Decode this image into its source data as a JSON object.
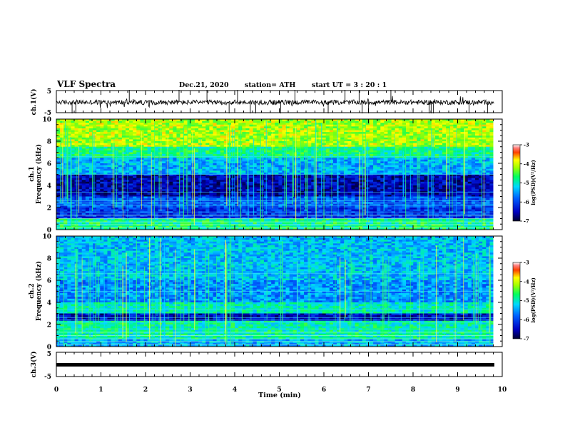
{
  "header": {
    "title": "VLF Spectra",
    "date": "Dec.21, 2020",
    "station": "station= ATH",
    "start": "start UT = 3 : 20 : 1"
  },
  "chart_data": [
    {
      "type": "line",
      "name": "ch1-waveform",
      "ylabel": "ch.1(V)",
      "ylim": [
        -5,
        5
      ],
      "yticks": [
        "5",
        "-5"
      ],
      "xlim": [
        0,
        10
      ],
      "baseline": 0
    },
    {
      "type": "heatmap",
      "name": "ch1-spectrogram",
      "ylabel": "ch.1\nFrequency (kHz)",
      "ylabel_line1": "ch.1",
      "ylabel_line2": "Frequency (kHz)",
      "ylim": [
        0,
        10
      ],
      "yticks": [
        "0",
        "2",
        "4",
        "6",
        "8",
        "10"
      ],
      "xlim": [
        0,
        9.8
      ],
      "colorbar": {
        "label": "log(PSD)(V²/Hz)",
        "range": [
          -7,
          -3
        ],
        "ticks": [
          "-3",
          "-4",
          "-5",
          "-6",
          "-7"
        ]
      }
    },
    {
      "type": "heatmap",
      "name": "ch2-spectrogram",
      "ylabel_line1": "ch.2",
      "ylabel_line2": "Frequency (kHz)",
      "ylim": [
        0,
        10
      ],
      "yticks": [
        "0",
        "2",
        "4",
        "6",
        "8",
        "10"
      ],
      "xlim": [
        0,
        9.8
      ],
      "colorbar": {
        "label": "log(PSD)(V²/Hz)",
        "range": [
          -7,
          -3
        ],
        "ticks": [
          "-3",
          "-4",
          "-5",
          "-6",
          "-7"
        ]
      }
    },
    {
      "type": "line",
      "name": "ch3-waveform",
      "ylabel": "ch.3(V)",
      "ylim": [
        -5,
        5
      ],
      "yticks": [
        "5",
        "-5"
      ],
      "xlim": [
        0,
        10
      ],
      "baseline": 0
    }
  ],
  "xaxis": {
    "label": "Time (min)",
    "range": [
      0,
      10
    ],
    "ticks": [
      "0",
      "1",
      "2",
      "3",
      "4",
      "5",
      "6",
      "7",
      "8",
      "9",
      "10"
    ]
  },
  "colors": {
    "frame": "#000000",
    "colormap": [
      "#000040",
      "#0000ff",
      "#00c8ff",
      "#00ff80",
      "#ffff00",
      "#ff0000",
      "#ffffff"
    ]
  }
}
